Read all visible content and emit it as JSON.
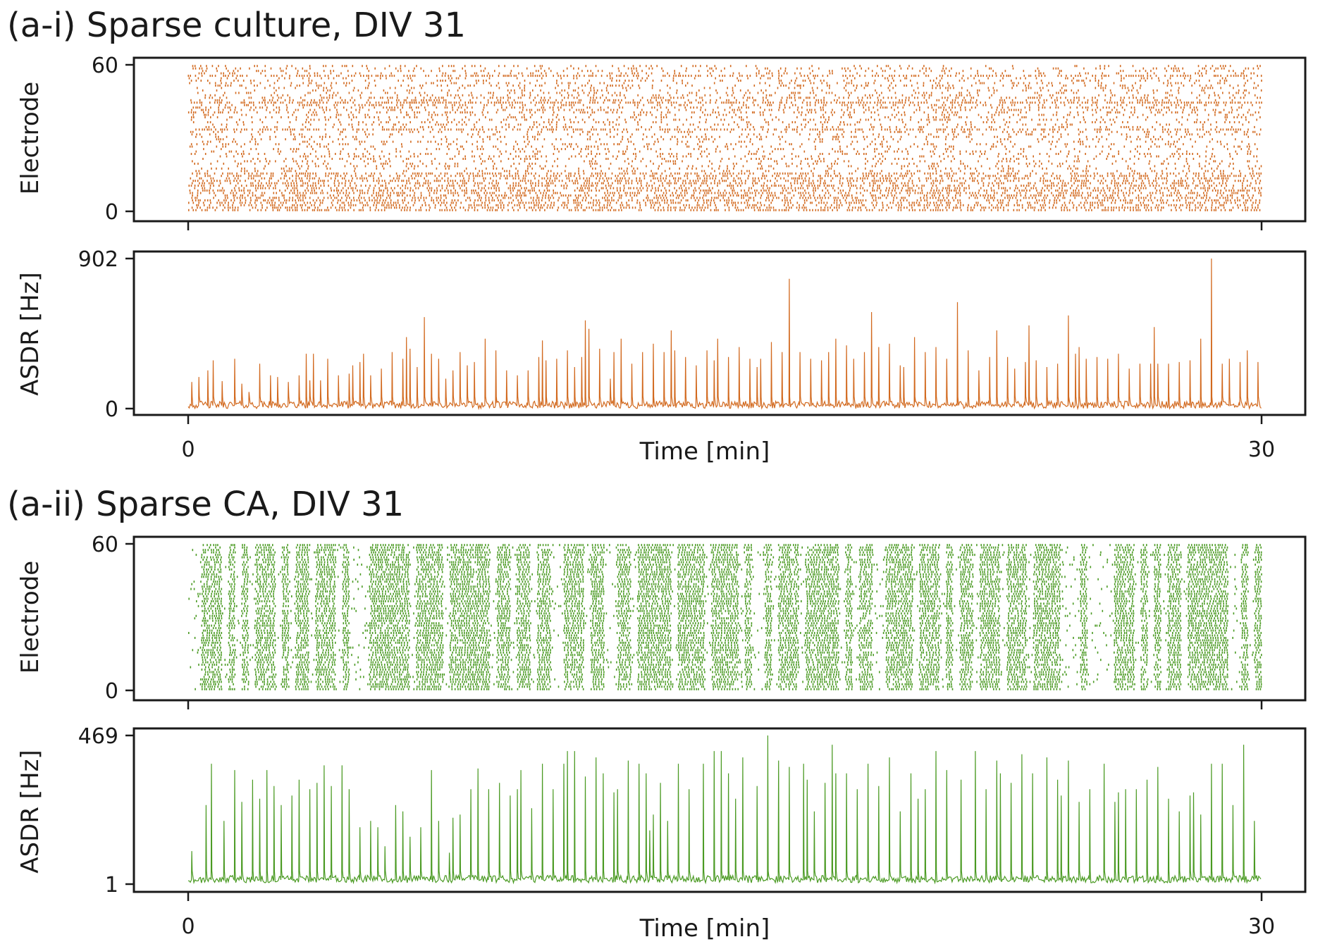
{
  "chart_data": [
    {
      "id": "a-i",
      "title": "(a-i) Sparse culture, DIV 31",
      "color": "#d2691e",
      "raster": {
        "type": "scatter",
        "description_kind": "spike raster",
        "ylabel": "Electrode",
        "ylim": [
          0,
          60
        ],
        "y_ticks": [
          "0",
          "60"
        ],
        "xlim": [
          0,
          30
        ],
        "seed": 31
      },
      "asdr": {
        "type": "line",
        "ylabel": "ASDR [Hz]",
        "xlabel": "Time [min]",
        "ylim": [
          0,
          902
        ],
        "y_ticks": [
          "0",
          "902"
        ],
        "x_ticks": [
          "0",
          "30"
        ],
        "xlim": [
          0,
          30
        ],
        "baseline": 0,
        "peaks": [
          [
            0.1,
            160
          ],
          [
            0.3,
            190
          ],
          [
            0.55,
            230
          ],
          [
            0.7,
            290
          ],
          [
            0.95,
            165
          ],
          [
            1.3,
            300
          ],
          [
            1.5,
            150
          ],
          [
            1.7,
            100
          ],
          [
            2.0,
            270
          ],
          [
            2.3,
            200
          ],
          [
            2.5,
            190
          ],
          [
            2.8,
            160
          ],
          [
            3.1,
            200
          ],
          [
            3.4,
            170
          ],
          [
            3.7,
            170
          ],
          [
            3.9,
            300
          ],
          [
            4.2,
            200
          ],
          [
            4.5,
            210
          ],
          [
            4.8,
            280
          ],
          [
            5.1,
            200
          ],
          [
            5.4,
            240
          ],
          [
            5.7,
            340
          ],
          [
            6.0,
            300
          ],
          [
            6.1,
            430
          ],
          [
            6.4,
            250
          ],
          [
            6.6,
            550
          ],
          [
            7.0,
            300
          ],
          [
            7.2,
            180
          ],
          [
            7.4,
            230
          ],
          [
            7.6,
            340
          ],
          [
            7.8,
            260
          ],
          [
            8.0,
            280
          ],
          [
            8.3,
            420
          ],
          [
            8.6,
            200
          ],
          [
            8.9,
            230
          ],
          [
            9.2,
            200
          ],
          [
            9.5,
            230
          ],
          [
            9.8,
            310
          ],
          [
            10.0,
            210
          ],
          [
            10.3,
            300
          ],
          [
            10.6,
            350
          ],
          [
            10.8,
            250
          ],
          [
            11.0,
            310
          ],
          [
            11.2,
            480
          ],
          [
            11.5,
            360
          ],
          [
            11.8,
            180
          ],
          [
            12.1,
            290
          ],
          [
            12.4,
            270
          ],
          [
            12.7,
            340
          ],
          [
            13.0,
            390
          ],
          [
            13.3,
            340
          ],
          [
            13.6,
            350
          ],
          [
            13.9,
            310
          ],
          [
            14.2,
            260
          ],
          [
            14.5,
            350
          ],
          [
            14.8,
            420
          ],
          [
            15.1,
            310
          ],
          [
            15.4,
            370
          ],
          [
            15.7,
            300
          ],
          [
            16.0,
            300
          ],
          [
            16.3,
            400
          ],
          [
            16.6,
            340
          ],
          [
            16.8,
            420
          ],
          [
            17.1,
            340
          ],
          [
            17.4,
            300
          ],
          [
            17.7,
            290
          ],
          [
            18.1,
            420
          ],
          [
            18.4,
            380
          ],
          [
            18.6,
            300
          ],
          [
            18.9,
            340
          ],
          [
            19.3,
            370
          ],
          [
            19.6,
            390
          ],
          [
            20.0,
            250
          ],
          [
            20.3,
            320
          ],
          [
            20.6,
            340
          ],
          [
            20.9,
            370
          ],
          [
            21.2,
            300
          ],
          [
            21.5,
            440
          ],
          [
            21.8,
            350
          ],
          [
            22.1,
            230
          ],
          [
            22.4,
            310
          ],
          [
            22.6,
            470
          ],
          [
            22.9,
            310
          ],
          [
            23.1,
            240
          ],
          [
            23.4,
            280
          ],
          [
            23.7,
            290
          ],
          [
            24.0,
            250
          ],
          [
            24.3,
            270
          ],
          [
            24.6,
            330
          ],
          [
            24.9,
            370
          ],
          [
            25.1,
            300
          ],
          [
            25.4,
            310
          ],
          [
            25.7,
            300
          ],
          [
            26.0,
            330
          ],
          [
            26.3,
            240
          ],
          [
            26.6,
            270
          ],
          [
            26.9,
            270
          ],
          [
            27.1,
            270
          ],
          [
            27.4,
            270
          ],
          [
            27.7,
            280
          ],
          [
            28.0,
            290
          ],
          [
            28.3,
            420
          ],
          [
            28.6,
            350
          ],
          [
            28.9,
            270
          ],
          [
            29.1,
            300
          ],
          [
            29.4,
            280
          ],
          [
            29.6,
            350
          ],
          [
            29.9,
            280
          ],
          [
            4.6,
            260
          ],
          [
            6.2,
            360
          ],
          [
            6.8,
            330
          ],
          [
            8.6,
            350
          ],
          [
            10.0,
            290
          ],
          [
            11.1,
            530
          ],
          [
            13.5,
            470
          ],
          [
            16.8,
            780
          ],
          [
            19.1,
            580
          ],
          [
            20.3,
            430
          ],
          [
            21.5,
            640
          ],
          [
            23.5,
            500
          ],
          [
            24.6,
            560
          ],
          [
            27.0,
            490
          ],
          [
            28.6,
            902
          ],
          [
            3.3,
            330
          ],
          [
            3.5,
            330
          ],
          [
            4.9,
            330
          ],
          [
            9.9,
            410
          ],
          [
            11.9,
            340
          ],
          [
            12.1,
            420
          ],
          [
            13.0,
            330
          ],
          [
            14.7,
            290
          ],
          [
            15.9,
            250
          ],
          [
            17.9,
            340
          ],
          [
            19.9,
            260
          ],
          [
            24.8,
            330
          ]
        ]
      }
    },
    {
      "id": "a-ii",
      "title": "(a-ii) Sparse CA, DIV 31",
      "color": "#4a9a22",
      "raster": {
        "type": "scatter",
        "description_kind": "spike raster",
        "ylabel": "Electrode",
        "ylim": [
          0,
          60
        ],
        "y_ticks": [
          "0",
          "60"
        ],
        "xlim": [
          0,
          30
        ],
        "seed": 77
      },
      "asdr": {
        "type": "line",
        "ylabel": "ASDR [Hz]",
        "xlabel": "Time [min]",
        "ylim": [
          1,
          469
        ],
        "y_ticks": [
          "1",
          "469"
        ],
        "x_ticks": [
          "0",
          "30"
        ],
        "xlim": [
          0,
          30
        ],
        "baseline": 5,
        "peaks": [
          [
            0.1,
            105
          ],
          [
            0.5,
            250
          ],
          [
            0.65,
            380
          ],
          [
            1.0,
            200
          ],
          [
            1.3,
            360
          ],
          [
            1.5,
            260
          ],
          [
            1.8,
            330
          ],
          [
            2.0,
            270
          ],
          [
            2.2,
            360
          ],
          [
            2.4,
            310
          ],
          [
            2.6,
            250
          ],
          [
            2.9,
            280
          ],
          [
            3.1,
            330
          ],
          [
            3.4,
            300
          ],
          [
            3.6,
            320
          ],
          [
            3.8,
            375
          ],
          [
            4.0,
            310
          ],
          [
            4.3,
            375
          ],
          [
            4.5,
            300
          ],
          [
            4.8,
            180
          ],
          [
            5.1,
            200
          ],
          [
            5.5,
            120
          ],
          [
            5.8,
            250
          ],
          [
            6.2,
            150
          ],
          [
            6.5,
            180
          ],
          [
            7.0,
            200
          ],
          [
            7.3,
            100
          ],
          [
            7.6,
            220
          ],
          [
            7.9,
            300
          ],
          [
            8.1,
            365
          ],
          [
            8.4,
            300
          ],
          [
            8.7,
            320
          ],
          [
            9.0,
            280
          ],
          [
            9.3,
            360
          ],
          [
            9.6,
            240
          ],
          [
            9.9,
            380
          ],
          [
            10.2,
            300
          ],
          [
            10.5,
            380
          ],
          [
            10.8,
            420
          ],
          [
            11.1,
            340
          ],
          [
            11.4,
            400
          ],
          [
            11.6,
            350
          ],
          [
            12.0,
            300
          ],
          [
            12.3,
            390
          ],
          [
            12.6,
            380
          ],
          [
            12.8,
            350
          ],
          [
            13.0,
            220
          ],
          [
            13.2,
            320
          ],
          [
            13.4,
            200
          ],
          [
            13.7,
            380
          ],
          [
            14.0,
            300
          ],
          [
            14.4,
            380
          ],
          [
            14.7,
            420
          ],
          [
            15.1,
            350
          ],
          [
            15.5,
            400
          ],
          [
            15.9,
            310
          ],
          [
            16.2,
            450
          ],
          [
            16.5,
            390
          ],
          [
            16.8,
            370
          ],
          [
            17.2,
            380
          ],
          [
            17.5,
            230
          ],
          [
            17.8,
            320
          ],
          [
            18.0,
            440
          ],
          [
            18.4,
            350
          ],
          [
            18.7,
            300
          ],
          [
            19.0,
            380
          ],
          [
            19.3,
            310
          ],
          [
            19.6,
            400
          ],
          [
            19.9,
            230
          ],
          [
            20.2,
            350
          ],
          [
            20.6,
            300
          ],
          [
            20.9,
            420
          ],
          [
            21.2,
            360
          ],
          [
            21.6,
            330
          ],
          [
            22.0,
            420
          ],
          [
            22.3,
            300
          ],
          [
            22.6,
            390
          ],
          [
            23.0,
            320
          ],
          [
            23.3,
            410
          ],
          [
            23.6,
            350
          ],
          [
            24.0,
            400
          ],
          [
            24.3,
            330
          ],
          [
            24.6,
            390
          ],
          [
            24.9,
            260
          ],
          [
            25.2,
            300
          ],
          [
            25.6,
            380
          ],
          [
            25.9,
            260
          ],
          [
            26.2,
            300
          ],
          [
            26.5,
            300
          ],
          [
            26.8,
            330
          ],
          [
            27.1,
            370
          ],
          [
            27.4,
            270
          ],
          [
            27.7,
            230
          ],
          [
            28.0,
            280
          ],
          [
            28.3,
            220
          ],
          [
            28.6,
            380
          ],
          [
            28.9,
            380
          ],
          [
            29.2,
            250
          ],
          [
            29.5,
            440
          ],
          [
            29.8,
            200
          ],
          [
            5.3,
            180
          ],
          [
            6.0,
            230
          ],
          [
            6.8,
            360
          ],
          [
            7.4,
            210
          ],
          [
            9.2,
            300
          ],
          [
            10.6,
            420
          ],
          [
            11.9,
            290
          ],
          [
            12.9,
            170
          ],
          [
            14.9,
            420
          ],
          [
            15.3,
            270
          ],
          [
            16.2,
            469
          ],
          [
            17.3,
            330
          ],
          [
            18.1,
            350
          ],
          [
            20.4,
            270
          ],
          [
            22.7,
            350
          ],
          [
            24.4,
            280
          ],
          [
            26.0,
            290
          ],
          [
            28.1,
            290
          ]
        ]
      }
    }
  ]
}
